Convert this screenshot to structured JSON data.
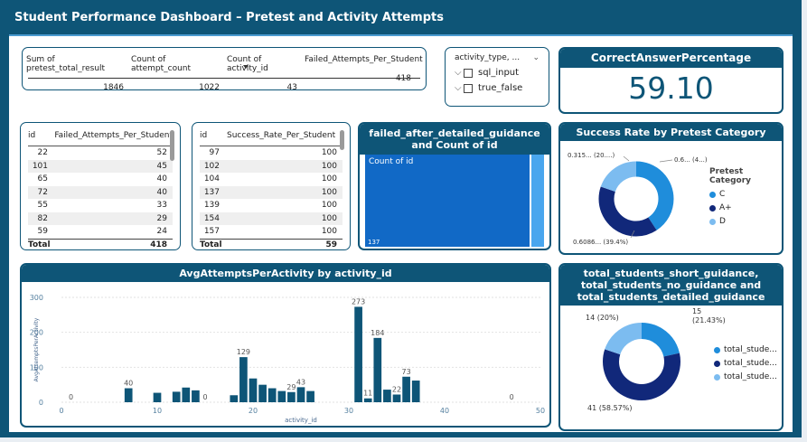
{
  "title": "Student Performance Dashboard – Pretest and Activity Attempts",
  "summary": {
    "columns": [
      {
        "header": "Sum of pretest_total_result",
        "value": "1846"
      },
      {
        "header": "Count of attempt_count",
        "value": "1022"
      },
      {
        "header": "Count of activity_id",
        "value": "43"
      },
      {
        "header": "Failed_Attempts_Per_Student",
        "value": "418"
      }
    ]
  },
  "slicer": {
    "header": "activity_type, ...",
    "items": [
      "sql_input",
      "true_false"
    ]
  },
  "kpi": {
    "label": "CorrectAnswerPercentage",
    "value": "59.10"
  },
  "failed_table": {
    "col1": "id",
    "col2": "Failed_Attempts_Per_Student",
    "rows": [
      [
        "22",
        "52"
      ],
      [
        "101",
        "45"
      ],
      [
        "65",
        "40"
      ],
      [
        "72",
        "40"
      ],
      [
        "55",
        "33"
      ],
      [
        "82",
        "29"
      ],
      [
        "59",
        "24"
      ]
    ],
    "total_label": "Total",
    "total_value": "418"
  },
  "success_table": {
    "col1": "id",
    "col2": "Success_Rate_Per_Student",
    "rows": [
      [
        "97",
        "100"
      ],
      [
        "102",
        "100"
      ],
      [
        "104",
        "100"
      ],
      [
        "137",
        "100"
      ],
      [
        "139",
        "100"
      ],
      [
        "154",
        "100"
      ],
      [
        "157",
        "100"
      ]
    ],
    "total_label": "Total",
    "total_value": "59"
  },
  "treemap": {
    "title": "failed_after_detailed_guidance and Count of id",
    "label": "Count of id",
    "value": "137"
  },
  "donut1": {
    "title": "Success Rate by Pretest Category",
    "legend_title": "Pretest Category",
    "labels": [
      "0.315... (20....)",
      "0.6... (4...)",
      "0.6086... (39.4%)"
    ],
    "colors": {
      "C": "#1f8ddb",
      "A+": "#11287a",
      "D": "#7cbcf0"
    }
  },
  "donut2": {
    "title_lines": [
      "total_students_short_guidance,",
      "total_students_no_guidance and",
      "total_students_detailed_guidance"
    ],
    "labels": [
      "14 (20%)",
      "15",
      "(21.43%)",
      "41 (58.57%)"
    ],
    "legend": [
      "total_stude...",
      "total_stude...",
      "total_stude..."
    ]
  },
  "chart_data": {
    "type": "bar",
    "title": "AvgAttemptsPerActivity by activity_id",
    "xlabel": "activity_id",
    "ylabel": "AvgAttemptsPerActivity",
    "xlim": [
      0,
      50
    ],
    "ylim": [
      0,
      300
    ],
    "xticks": [
      "0",
      "10",
      "20",
      "30",
      "40",
      "50"
    ],
    "yticks": [
      "0",
      "100",
      "200",
      "300"
    ],
    "color": "#0e5577",
    "points": [
      {
        "x": 1,
        "y": 0,
        "label": "0"
      },
      {
        "x": 7,
        "y": 40,
        "label": "40"
      },
      {
        "x": 10,
        "y": 27
      },
      {
        "x": 12,
        "y": 30
      },
      {
        "x": 13,
        "y": 42
      },
      {
        "x": 14,
        "y": 34
      },
      {
        "x": 15,
        "y": 0,
        "label": "0"
      },
      {
        "x": 18,
        "y": 20
      },
      {
        "x": 19,
        "y": 129,
        "label": "129"
      },
      {
        "x": 20,
        "y": 68
      },
      {
        "x": 21,
        "y": 50
      },
      {
        "x": 22,
        "y": 40
      },
      {
        "x": 23,
        "y": 32
      },
      {
        "x": 24,
        "y": 29,
        "label": "29"
      },
      {
        "x": 25,
        "y": 43,
        "label": "43"
      },
      {
        "x": 26,
        "y": 32
      },
      {
        "x": 31,
        "y": 273,
        "label": "273"
      },
      {
        "x": 32,
        "y": 11,
        "label": "11"
      },
      {
        "x": 33,
        "y": 184,
        "label": "184"
      },
      {
        "x": 34,
        "y": 36
      },
      {
        "x": 35,
        "y": 22,
        "label": "22"
      },
      {
        "x": 36,
        "y": 73,
        "label": "73"
      },
      {
        "x": 37,
        "y": 62
      },
      {
        "x": 47,
        "y": 0,
        "label": "0"
      }
    ]
  }
}
